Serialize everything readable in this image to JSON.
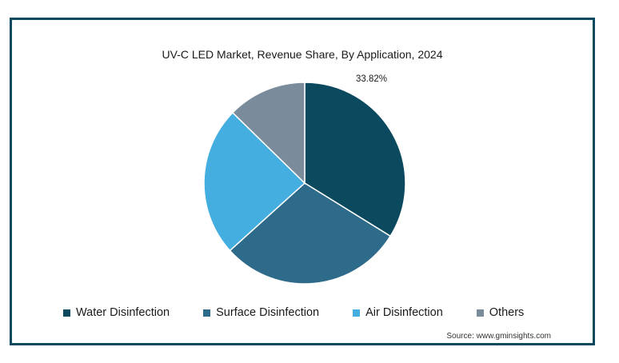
{
  "chart_data": {
    "type": "pie",
    "title": "UV-C LED Market, Revenue Share, By Application, 2024",
    "slices": [
      {
        "label": "Water Disinfection",
        "value": 33.82,
        "color": "#0b4a5e",
        "data_label": "33.82%"
      },
      {
        "label": "Surface Disinfection",
        "value": 29.5,
        "color": "#2e6b8a",
        "data_label": ""
      },
      {
        "label": "Air Disinfection",
        "value": 24.0,
        "color": "#45aee0",
        "data_label": ""
      },
      {
        "label": "Others",
        "value": 12.68,
        "color": "#7a8c9c",
        "data_label": ""
      }
    ],
    "legend": "bottom"
  },
  "source": "Source: www.gminsights.com"
}
